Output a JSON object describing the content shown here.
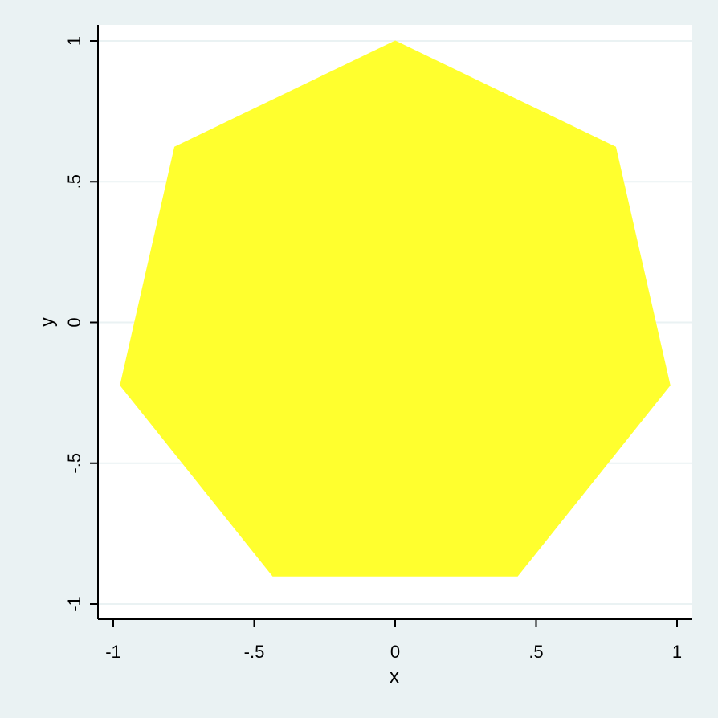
{
  "chart_data": {
    "type": "area",
    "title": "",
    "xlabel": "x",
    "ylabel": "y",
    "xlim": [
      -1,
      1
    ],
    "ylim": [
      -1,
      1
    ],
    "x_ticks": [
      {
        "value": -1,
        "label": "-1"
      },
      {
        "value": -0.5,
        "label": "-.5"
      },
      {
        "value": 0,
        "label": "0"
      },
      {
        "value": 0.5,
        "label": ".5"
      },
      {
        "value": 1,
        "label": "1"
      }
    ],
    "y_ticks": [
      {
        "value": -1,
        "label": "-1"
      },
      {
        "value": -0.5,
        "label": "-.5"
      },
      {
        "value": 0,
        "label": "0"
      },
      {
        "value": 0.5,
        "label": ".5"
      },
      {
        "value": 1,
        "label": "1"
      }
    ],
    "grid": "horizontal",
    "series": [
      {
        "shape": "heptagon",
        "color": "#ffff2e",
        "points": [
          {
            "x": 0,
            "y": 1
          },
          {
            "x": 0.782,
            "y": 0.623
          },
          {
            "x": 0.975,
            "y": -0.223
          },
          {
            "x": 0.434,
            "y": -0.901
          },
          {
            "x": -0.434,
            "y": -0.901
          },
          {
            "x": -0.975,
            "y": -0.223
          },
          {
            "x": -0.782,
            "y": 0.623
          }
        ]
      }
    ]
  },
  "colors": {
    "outer_background": "#eaf2f3",
    "plot_background": "#ffffff",
    "gridline": "#eaf2f3",
    "axis": "#000000",
    "fill": "#ffff2e"
  }
}
